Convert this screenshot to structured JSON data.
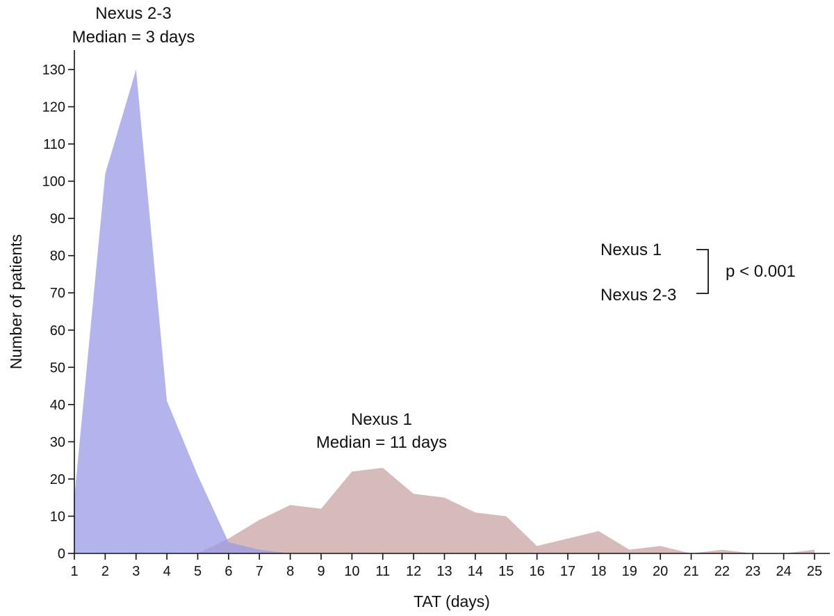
{
  "chart_data": {
    "type": "area",
    "xlabel": "TAT (days)",
    "ylabel": "Number of patients",
    "xlim": [
      1,
      25
    ],
    "ylim": [
      0,
      130
    ],
    "x_ticks": [
      1,
      2,
      3,
      4,
      5,
      6,
      7,
      8,
      9,
      10,
      11,
      12,
      13,
      14,
      15,
      16,
      17,
      18,
      19,
      20,
      21,
      22,
      23,
      24,
      25
    ],
    "y_ticks": [
      0,
      10,
      20,
      30,
      40,
      50,
      60,
      70,
      80,
      90,
      100,
      110,
      120,
      130
    ],
    "grid": false,
    "series": [
      {
        "name": "Nexus 2-3",
        "color": "#9b9be6",
        "x": [
          1,
          2,
          3,
          4,
          5,
          6,
          7,
          8,
          9,
          10,
          11,
          12,
          13,
          14,
          15,
          16,
          17,
          18,
          19,
          20,
          21,
          22,
          23,
          24,
          25
        ],
        "values": [
          15,
          102,
          130,
          41,
          21,
          3,
          1,
          0,
          0,
          0,
          0,
          0,
          0,
          0,
          0,
          0,
          0,
          0,
          0,
          0,
          0,
          0,
          0,
          0,
          0
        ]
      },
      {
        "name": "Nexus 1",
        "color": "#c9a3a3",
        "x": [
          1,
          2,
          3,
          4,
          5,
          6,
          7,
          8,
          9,
          10,
          11,
          12,
          13,
          14,
          15,
          16,
          17,
          18,
          19,
          20,
          21,
          22,
          23,
          24,
          25
        ],
        "values": [
          0,
          0,
          0,
          0,
          0,
          4,
          9,
          13,
          12,
          22,
          23,
          16,
          15,
          11,
          10,
          2,
          4,
          6,
          1,
          2,
          0,
          1,
          0,
          0,
          1
        ]
      }
    ],
    "annotations": {
      "nexus23_line1": "Nexus 2-3",
      "nexus23_line2": "Median = 3 days",
      "nexus1_line1": "Nexus 1",
      "nexus1_line2": "Median = 11 days",
      "bracket_top": "Nexus 1",
      "bracket_bottom": "Nexus 2-3",
      "pvalue": "p < 0.001"
    }
  }
}
